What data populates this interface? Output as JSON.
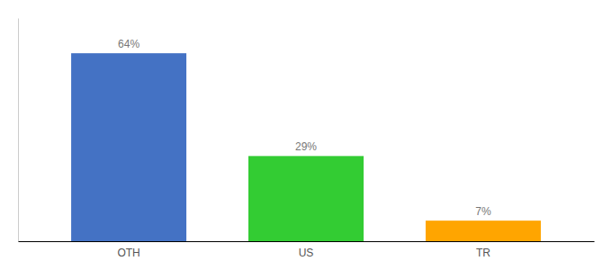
{
  "chart_data": {
    "type": "bar",
    "categories": [
      "OTH",
      "US",
      "TR"
    ],
    "values": [
      64,
      29,
      7
    ],
    "value_labels": [
      "64%",
      "29%",
      "7%"
    ],
    "colors": [
      "#4472C4",
      "#33CC33",
      "#FFA500"
    ],
    "ylim": [
      0,
      76
    ],
    "data_labels": true,
    "tick_labels": "x"
  }
}
